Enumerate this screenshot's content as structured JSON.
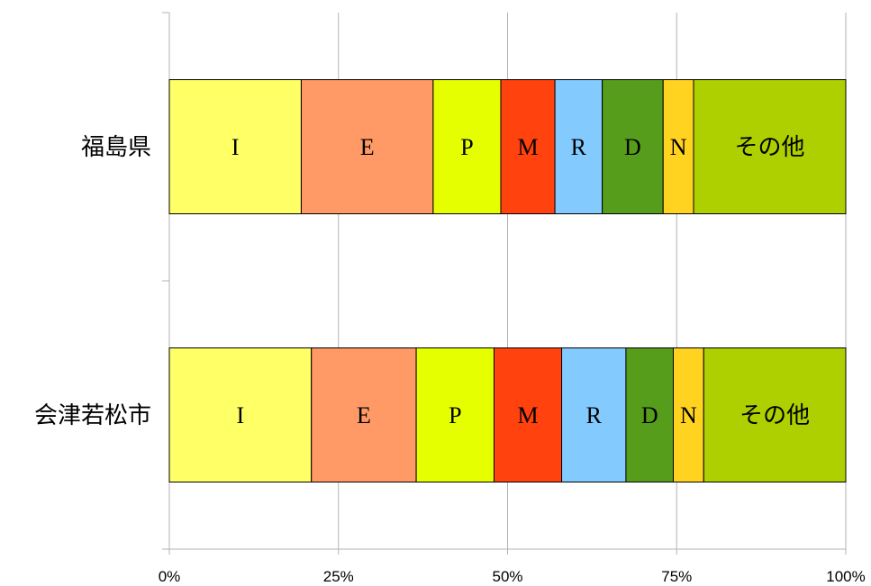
{
  "chart_data": {
    "type": "bar",
    "orientation": "horizontal",
    "stacked": "percent",
    "categories": [
      "福島県",
      "会津若松市"
    ],
    "x_tick_labels": [
      "0%",
      "25%",
      "50%",
      "75%",
      "100%"
    ],
    "xlim": [
      0,
      100
    ],
    "grid": true,
    "series": [
      {
        "name": "I",
        "color": "#ffff66",
        "values": [
          19.5,
          21.0
        ]
      },
      {
        "name": "E",
        "color": "#ff9966",
        "values": [
          19.5,
          15.5
        ]
      },
      {
        "name": "P",
        "color": "#e6ff00",
        "values": [
          10.0,
          11.5
        ]
      },
      {
        "name": "M",
        "color": "#ff420e",
        "values": [
          8.0,
          10.0
        ]
      },
      {
        "name": "R",
        "color": "#83caff",
        "values": [
          7.0,
          9.5
        ]
      },
      {
        "name": "D",
        "color": "#579d1c",
        "values": [
          9.0,
          7.0
        ]
      },
      {
        "name": "N",
        "color": "#ffd320",
        "values": [
          4.5,
          4.5
        ]
      },
      {
        "name": "その他",
        "color": "#aecf00",
        "values": [
          22.5,
          21.0
        ]
      }
    ]
  }
}
